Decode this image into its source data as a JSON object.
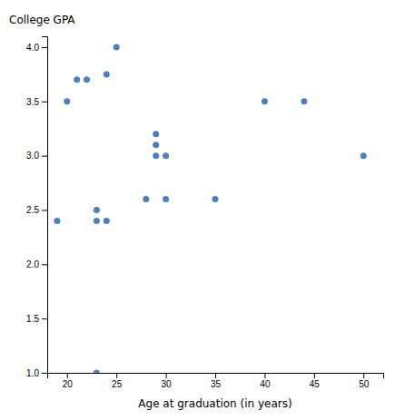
{
  "chart_data": {
    "type": "scatter",
    "x": [
      19,
      20,
      22,
      23,
      23,
      24,
      25,
      28,
      29,
      29,
      30,
      30,
      35,
      40,
      44,
      50,
      21,
      23,
      24,
      29
    ],
    "values": [
      2.4,
      3.5,
      3.7,
      2.5,
      1.0,
      3.75,
      4.0,
      2.6,
      3.1,
      3.2,
      2.6,
      3.0,
      2.6,
      3.5,
      3.5,
      3.0,
      3.7,
      2.4,
      2.4,
      3.0
    ],
    "color": "#4d7fbe",
    "xlabel": "Age at graduation (in years)",
    "ylabel": "College GPA",
    "xlim": [
      18,
      52
    ],
    "ylim": [
      1.0,
      4.1
    ],
    "xticks": [
      20,
      25,
      30,
      35,
      40,
      45,
      50
    ],
    "yticks": [
      {
        "value": 1.0,
        "label": "1.0"
      },
      1.5,
      {
        "value": 2.0,
        "label": "2.0"
      },
      2.5,
      {
        "value": 3.0,
        "label": "3.0"
      },
      3.5,
      {
        "value": 4.0,
        "label": "4.0"
      }
    ],
    "grid": false
  }
}
